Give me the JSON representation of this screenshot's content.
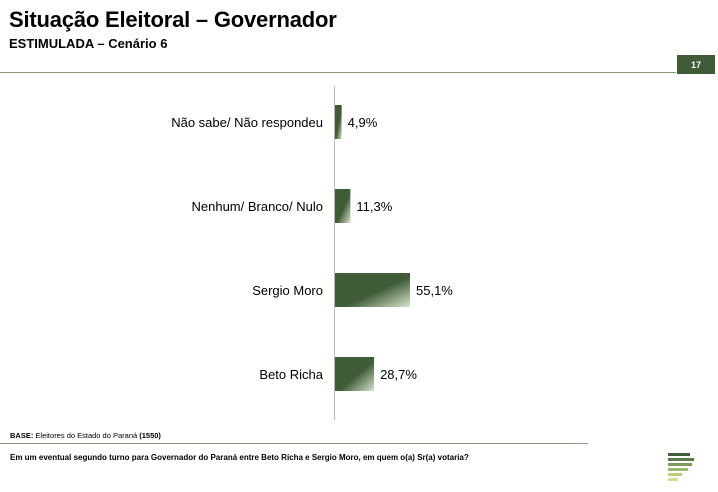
{
  "header": {
    "title": "Situação Eleitoral – Governador",
    "subtitle": "ESTIMULADA – Cenário 6",
    "page_number": "17"
  },
  "footer": {
    "base_label": "BASE:",
    "base_text": " Eleitores do Estado do Paraná ",
    "base_count": "(1550)",
    "question": "Em um eventual segundo turno para Governador do Paraná entre Beto Richa e Sergio Moro, em quem o(a) Sr(a) votaria?"
  },
  "colors": {
    "bar_dark": "#3f5c36",
    "bar_light": "#d9e4cf",
    "accent": "#3f5c36"
  },
  "chart_data": {
    "type": "bar",
    "orientation": "horizontal",
    "categories": [
      "Não sabe/ Não respondeu",
      "Nenhum/ Branco/ Nulo",
      "Sergio Moro",
      "Beto Richa"
    ],
    "values": [
      4.9,
      11.3,
      55.1,
      28.7
    ],
    "value_labels": [
      "4,9%",
      "11,3%",
      "55,1%",
      "28,7%"
    ],
    "unit": "%",
    "xlim": [
      0,
      100
    ],
    "grid": false,
    "legend": "none"
  }
}
